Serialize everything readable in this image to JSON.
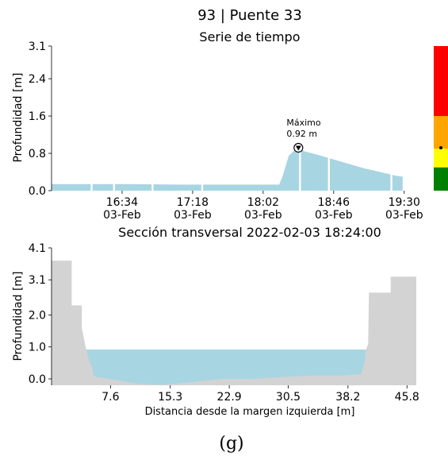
{
  "figure": {
    "title": "93 | Puente 33",
    "caption": "(g)"
  },
  "chart_data": [
    {
      "type": "area",
      "title": "Serie de tiempo",
      "xlabel": "",
      "ylabel": "Profundidad [m]",
      "xlim": [
        "03-Feb 15:50",
        "03-Feb 19:40"
      ],
      "ylim": [
        0.0,
        3.1
      ],
      "yticks": [
        0.0,
        0.8,
        1.6,
        2.4,
        3.1
      ],
      "ytick_labels": [
        "0.0",
        "0.8",
        "1.6",
        "2.4",
        "3.1"
      ],
      "xticks": [
        "03-Feb 16:34",
        "03-Feb 17:18",
        "03-Feb 18:02",
        "03-Feb 18:46",
        "03-Feb 19:30"
      ],
      "xtick_labels": [
        {
          "time": "16:34",
          "date": "03-Feb"
        },
        {
          "time": "17:18",
          "date": "03-Feb"
        },
        {
          "time": "18:02",
          "date": "03-Feb"
        },
        {
          "time": "18:46",
          "date": "03-Feb"
        },
        {
          "time": "19:30",
          "date": "03-Feb"
        }
      ],
      "grid": false,
      "fill_color": "#a8d5e2",
      "series": [
        {
          "x": [
            "03-Feb 15:50",
            "03-Feb 16:15",
            "03-Feb 16:40",
            "03-Feb 17:10",
            "03-Feb 17:40",
            "03-Feb 18:05",
            "03-Feb 18:12",
            "03-Feb 18:14",
            "03-Feb 18:18",
            "03-Feb 18:22",
            "03-Feb 18:24",
            "03-Feb 18:28",
            "03-Feb 18:35",
            "03-Feb 18:45",
            "03-Feb 18:55",
            "03-Feb 19:05",
            "03-Feb 19:15",
            "03-Feb 19:25",
            "03-Feb 19:29"
          ],
          "y": [
            0.14,
            0.14,
            0.14,
            0.13,
            0.13,
            0.13,
            0.13,
            0.3,
            0.75,
            0.88,
            0.92,
            0.84,
            0.78,
            0.68,
            0.58,
            0.48,
            0.4,
            0.32,
            0.3
          ]
        }
      ],
      "gaps": [
        "03-Feb 16:15",
        "03-Feb 16:29",
        "03-Feb 16:53",
        "03-Feb 17:24",
        "03-Feb 18:25",
        "03-Feb 18:43",
        "03-Feb 19:22"
      ],
      "annotation": {
        "text_line1": "Máximo",
        "text_line2": "0.92 m",
        "x": "03-Feb 18:24",
        "y": 0.92
      },
      "alert_scale": {
        "levels": [
          {
            "from": 0.0,
            "to": 0.5,
            "color": "#008000"
          },
          {
            "from": 0.5,
            "to": 0.9,
            "color": "#ffff00"
          },
          {
            "from": 0.9,
            "to": 1.6,
            "color": "#ffa500"
          },
          {
            "from": 1.6,
            "to": 3.1,
            "color": "#ff0000"
          }
        ],
        "current": 0.92
      }
    },
    {
      "type": "area",
      "title": "Sección transversal 2022-02-03 18:24:00",
      "xlabel": "Distancia desde la margen izquierda [m]",
      "ylabel": "Profundidad [m]",
      "xlim": [
        0.0,
        47.0
      ],
      "ylim": [
        -0.2,
        4.1
      ],
      "yticks": [
        0.0,
        1.0,
        2.0,
        3.1,
        4.1
      ],
      "ytick_labels": [
        "0.0",
        "1.0",
        "2.0",
        "3.1",
        "4.1"
      ],
      "xticks": [
        7.6,
        15.3,
        22.9,
        30.5,
        38.2,
        45.8
      ],
      "xtick_labels": [
        "7.6",
        "15.3",
        "22.9",
        "30.5",
        "38.2",
        "45.8"
      ],
      "grid": false,
      "ground_color": "#d3d3d3",
      "water_color": "#a8d5e2",
      "water_level": 0.92,
      "bed_profile": {
        "x": [
          0.0,
          2.6,
          2.6,
          3.9,
          3.9,
          4.4,
          4.8,
          5.3,
          5.4,
          6.0,
          8.0,
          11.0,
          14.0,
          16.0,
          19.0,
          22.0,
          26.0,
          29.0,
          33.0,
          37.0,
          39.9,
          40.4,
          40.5,
          40.8,
          40.9,
          43.7,
          43.7,
          47.0,
          47.0
        ],
        "y": [
          3.7,
          3.7,
          2.3,
          2.3,
          1.6,
          1.0,
          0.6,
          0.3,
          0.1,
          0.05,
          -0.02,
          -0.15,
          -0.18,
          -0.15,
          -0.08,
          0.0,
          0.0,
          0.05,
          0.1,
          0.1,
          0.15,
          0.6,
          0.9,
          1.1,
          2.7,
          2.7,
          3.2,
          3.2,
          -0.2
        ]
      }
    }
  ]
}
